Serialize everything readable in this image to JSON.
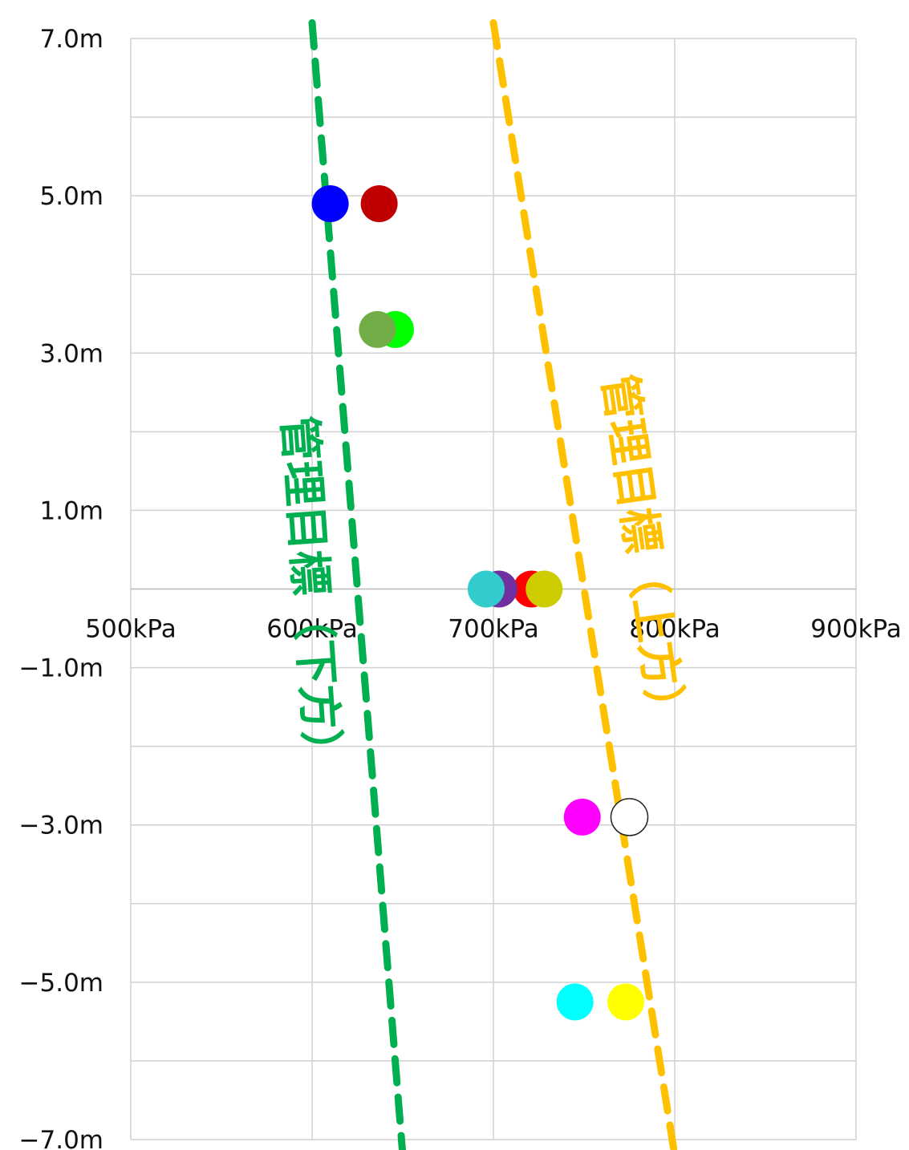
{
  "chart_data": {
    "type": "scatter",
    "xlim": [
      500,
      900
    ],
    "ylim": [
      -7,
      7
    ],
    "x_tick_labels": [
      "500kPa",
      "600kPa",
      "700kPa",
      "800kPa",
      "900kPa"
    ],
    "x_tick_values": [
      500,
      600,
      700,
      800,
      900
    ],
    "y_tick_labels": [
      "7.0m",
      "5.0m",
      "3.0m",
      "1.0m",
      "−1.0m",
      "−3.0m",
      "−5.0m",
      "−7.0m"
    ],
    "y_tick_values": [
      7,
      5,
      3,
      1,
      -1,
      -3,
      -5,
      -7
    ],
    "y_minor_grid": [
      6,
      4,
      2,
      0,
      -2,
      -4,
      -6
    ],
    "grid": true,
    "points": [
      {
        "x": 610,
        "y": 4.9,
        "color": "#0000ff"
      },
      {
        "x": 637,
        "y": 4.9,
        "color": "#c00000"
      },
      {
        "x": 646,
        "y": 3.3,
        "color": "#00ff00"
      },
      {
        "x": 636,
        "y": 3.3,
        "color": "#70ad47"
      },
      {
        "x": 721,
        "y": 0.0,
        "color": "#ff0000"
      },
      {
        "x": 728,
        "y": 0.0,
        "color": "#cccc00"
      },
      {
        "x": 703,
        "y": 0.0,
        "color": "#7030a0"
      },
      {
        "x": 696,
        "y": 0.0,
        "color": "#33cccc"
      },
      {
        "x": 749,
        "y": -2.9,
        "color": "#ff00ff"
      },
      {
        "x": 775,
        "y": -2.9,
        "color": "#ffffff"
      },
      {
        "x": 745,
        "y": -5.25,
        "color": "#00ffff"
      },
      {
        "x": 773,
        "y": -5.25,
        "color": "#ffff00"
      }
    ],
    "lines": [
      {
        "name": "管理目標（下方）",
        "color": "#00b050",
        "points": [
          [
            600,
            7.2
          ],
          [
            650,
            -7.2
          ]
        ]
      },
      {
        "name": "管理目標（上方）",
        "color": "#ffc000",
        "points": [
          [
            700,
            7.2
          ],
          [
            800,
            -7.2
          ]
        ]
      }
    ]
  },
  "annotations": [
    {
      "text": "管理目標（下方）",
      "color": "#00b050"
    },
    {
      "text": "管理目標（上方）",
      "color": "#ffc000"
    }
  ]
}
